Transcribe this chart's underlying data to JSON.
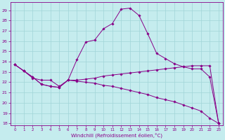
{
  "xlabel": "Windchill (Refroidissement éolien,°C)",
  "x_ticks": [
    0,
    1,
    2,
    3,
    4,
    5,
    6,
    7,
    8,
    9,
    10,
    11,
    12,
    13,
    14,
    15,
    16,
    17,
    18,
    19,
    20,
    21,
    22,
    23
  ],
  "ylim": [
    17.8,
    29.8
  ],
  "yticks": [
    18,
    19,
    20,
    21,
    22,
    23,
    24,
    25,
    26,
    27,
    28,
    29
  ],
  "bg_color": "#c5ecee",
  "grid_color": "#a0d4d8",
  "line_color": "#880088",
  "line1_y": [
    23.7,
    23.1,
    22.4,
    22.2,
    22.2,
    21.6,
    22.2,
    22.2,
    22.3,
    22.4,
    22.6,
    22.7,
    22.8,
    22.9,
    23.0,
    23.1,
    23.2,
    23.3,
    23.4,
    23.5,
    23.6,
    23.6,
    23.6,
    18.0
  ],
  "line2_y": [
    23.7,
    23.1,
    22.5,
    21.8,
    21.6,
    21.5,
    22.2,
    22.1,
    22.0,
    21.9,
    21.7,
    21.6,
    21.4,
    21.2,
    21.0,
    20.8,
    20.5,
    20.3,
    20.1,
    19.8,
    19.5,
    19.2,
    18.5,
    18.0
  ],
  "line3_y": [
    23.7,
    23.1,
    22.5,
    21.8,
    21.6,
    21.5,
    22.2,
    24.2,
    25.9,
    26.1,
    27.2,
    27.7,
    29.1,
    29.2,
    28.5,
    26.7,
    24.8,
    24.3,
    23.8,
    23.5,
    23.3,
    23.3,
    22.5,
    18.0
  ]
}
